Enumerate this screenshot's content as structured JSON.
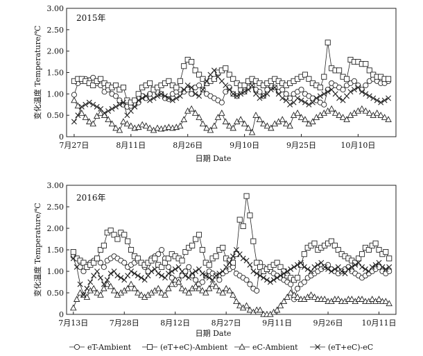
{
  "chart_data": [
    {
      "type": "line",
      "title": "2015年",
      "xlabel": "日期 Date",
      "ylabel": "变化温度 Temperature/℃",
      "ylim": [
        0,
        3
      ],
      "yticks": [
        "0",
        "0.50",
        "1.00",
        "1.50",
        "2.00",
        "2.50",
        "3.00"
      ],
      "xticks": [
        "7月27日",
        "8月11日",
        "8月26日",
        "9月10日",
        "9月25日",
        "10月10日"
      ],
      "x": [
        "07-27",
        "07-28",
        "07-29",
        "07-30",
        "07-31",
        "08-01",
        "08-02",
        "08-03",
        "08-04",
        "08-05",
        "08-06",
        "08-07",
        "08-08",
        "08-09",
        "08-10",
        "08-11",
        "08-12",
        "08-13",
        "08-14",
        "08-15",
        "08-16",
        "08-17",
        "08-18",
        "08-19",
        "08-20",
        "08-21",
        "08-22",
        "08-23",
        "08-24",
        "08-25",
        "08-26",
        "08-27",
        "08-28",
        "08-29",
        "08-30",
        "08-31",
        "09-01",
        "09-02",
        "09-03",
        "09-04",
        "09-05",
        "09-06",
        "09-07",
        "09-08",
        "09-09",
        "09-10",
        "09-11",
        "09-12",
        "09-13",
        "09-14",
        "09-15",
        "09-16",
        "09-17",
        "09-18",
        "09-19",
        "09-20",
        "09-21",
        "09-22",
        "09-23",
        "09-24",
        "09-25",
        "09-26",
        "09-27",
        "09-28",
        "09-29",
        "09-30",
        "10-01",
        "10-02",
        "10-03",
        "10-04",
        "10-05",
        "10-06",
        "10-07",
        "10-08",
        "10-09",
        "10-10",
        "10-11",
        "10-12",
        "10-13",
        "10-14",
        "10-15",
        "10-16",
        "10-17",
        "10-18"
      ],
      "series": [
        {
          "name": "eT-Ambient",
          "marker": "circle",
          "values": [
            0.98,
            1.25,
            1.3,
            1.35,
            1.32,
            1.38,
            1.25,
            1.2,
            1.05,
            1.1,
            1.0,
            0.95,
            0.85,
            0.75,
            0.7,
            0.72,
            0.75,
            0.8,
            0.95,
            0.9,
            1.0,
            1.1,
            1.05,
            1.0,
            0.9,
            0.88,
            1.0,
            1.05,
            1.1,
            1.05,
            1.1,
            1.0,
            1.15,
            1.2,
            1.1,
            1.0,
            0.95,
            0.9,
            0.85,
            0.8,
            1.05,
            1.15,
            1.0,
            0.95,
            1.1,
            1.05,
            1.15,
            1.2,
            1.1,
            1.05,
            0.95,
            1.1,
            1.2,
            1.15,
            1.05,
            1.1,
            1.0,
            0.9,
            1.0,
            1.05,
            1.1,
            1.0,
            0.95,
            0.9,
            0.85,
            0.8,
            0.75,
            1.1,
            1.25,
            1.2,
            1.15,
            1.1,
            1.2,
            1.25,
            1.3,
            1.2,
            1.1,
            1.2,
            1.3,
            1.35,
            1.3,
            1.25,
            1.25,
            1.3
          ]
        },
        {
          "name": "(eT+eC)-Ambient",
          "marker": "square",
          "values": [
            1.3,
            1.35,
            1.35,
            1.3,
            1.25,
            1.2,
            1.3,
            1.35,
            1.25,
            1.2,
            1.15,
            1.2,
            1.1,
            1.15,
            0.85,
            0.8,
            0.85,
            1.0,
            1.15,
            1.2,
            1.25,
            1.1,
            1.15,
            1.2,
            1.25,
            1.3,
            1.2,
            1.15,
            1.3,
            1.65,
            1.8,
            1.75,
            1.55,
            1.45,
            1.35,
            1.25,
            1.3,
            1.35,
            1.5,
            1.55,
            1.6,
            1.45,
            1.35,
            1.25,
            1.2,
            1.2,
            1.3,
            1.35,
            1.3,
            1.25,
            1.2,
            1.25,
            1.3,
            1.35,
            1.3,
            1.25,
            1.2,
            1.25,
            1.3,
            1.35,
            1.4,
            1.45,
            1.35,
            1.25,
            1.2,
            1.15,
            1.4,
            2.2,
            1.6,
            1.55,
            1.55,
            1.4,
            1.35,
            1.8,
            1.75,
            1.75,
            1.7,
            1.7,
            1.55,
            1.45,
            1.4,
            1.4,
            1.35,
            1.35
          ]
        },
        {
          "name": "eC-Ambient",
          "marker": "triangle",
          "values": [
            0.85,
            0.72,
            0.55,
            0.45,
            0.35,
            0.3,
            0.48,
            0.55,
            0.5,
            0.4,
            0.3,
            0.2,
            0.15,
            0.35,
            0.3,
            0.25,
            0.2,
            0.22,
            0.28,
            0.25,
            0.2,
            0.15,
            0.2,
            0.18,
            0.2,
            0.22,
            0.2,
            0.22,
            0.25,
            0.4,
            0.6,
            0.65,
            0.55,
            0.45,
            0.3,
            0.2,
            0.15,
            0.25,
            0.45,
            0.55,
            0.35,
            0.25,
            0.2,
            0.35,
            0.4,
            0.3,
            0.2,
            0.1,
            0.5,
            0.4,
            0.3,
            0.25,
            0.2,
            0.3,
            0.35,
            0.4,
            0.3,
            0.25,
            0.5,
            0.55,
            0.45,
            0.4,
            0.3,
            0.35,
            0.45,
            0.5,
            0.55,
            0.6,
            0.65,
            0.55,
            0.5,
            0.45,
            0.4,
            0.5,
            0.55,
            0.6,
            0.65,
            0.6,
            0.55,
            0.5,
            0.55,
            0.5,
            0.45,
            0.4
          ]
        },
        {
          "name": "(eT+eC)-eC",
          "marker": "cross",
          "values": [
            0.35,
            0.5,
            0.7,
            0.75,
            0.8,
            0.75,
            0.7,
            0.65,
            0.55,
            0.6,
            0.65,
            0.7,
            0.75,
            0.8,
            0.5,
            0.6,
            0.7,
            0.85,
            0.9,
            0.95,
            0.85,
            0.9,
            0.95,
            1.0,
            0.95,
            0.9,
            0.85,
            0.9,
            0.95,
            1.1,
            1.2,
            1.15,
            1.0,
            0.95,
            1.1,
            1.3,
            1.45,
            1.55,
            1.4,
            1.3,
            1.2,
            1.1,
            1.0,
            0.95,
            1.0,
            1.05,
            1.1,
            1.2,
            1.0,
            0.9,
            0.95,
            1.0,
            1.1,
            1.15,
            1.0,
            0.9,
            0.85,
            0.75,
            0.8,
            0.9,
            0.85,
            0.8,
            0.75,
            0.8,
            0.9,
            0.95,
            1.0,
            1.05,
            1.1,
            1.0,
            0.9,
            0.85,
            0.95,
            1.05,
            1.1,
            1.15,
            1.05,
            1.0,
            0.95,
            0.9,
            0.85,
            0.8,
            0.85,
            0.9
          ]
        }
      ]
    },
    {
      "type": "line",
      "title": "2016年",
      "xlabel": "日期 Date",
      "ylabel": "变化温度 Temperature/℃",
      "ylim": [
        0,
        3
      ],
      "yticks": [
        "0",
        "0.50",
        "1.00",
        "1.50",
        "2.00",
        "2.50",
        "3.00"
      ],
      "xticks": [
        "7月13日",
        "7月28日",
        "8月12日",
        "8月27日",
        "9月11日",
        "9月26日",
        "10月11日"
      ],
      "x": [
        "07-13",
        "07-14",
        "07-15",
        "07-16",
        "07-17",
        "07-18",
        "07-19",
        "07-20",
        "07-21",
        "07-22",
        "07-23",
        "07-24",
        "07-25",
        "07-26",
        "07-27",
        "07-28",
        "07-29",
        "07-30",
        "07-31",
        "08-01",
        "08-02",
        "08-03",
        "08-04",
        "08-05",
        "08-06",
        "08-07",
        "08-08",
        "08-09",
        "08-10",
        "08-11",
        "08-12",
        "08-13",
        "08-14",
        "08-15",
        "08-16",
        "08-17",
        "08-18",
        "08-19",
        "08-20",
        "08-21",
        "08-22",
        "08-23",
        "08-24",
        "08-25",
        "08-26",
        "08-27",
        "08-28",
        "08-29",
        "08-30",
        "08-31",
        "09-01",
        "09-02",
        "09-03",
        "09-04",
        "09-05",
        "09-06",
        "09-07",
        "09-08",
        "09-09",
        "09-10",
        "09-11",
        "09-12",
        "09-13",
        "09-14",
        "09-15",
        "09-16",
        "09-17",
        "09-18",
        "09-19",
        "09-20",
        "09-21",
        "09-22",
        "09-23",
        "09-24",
        "09-25",
        "09-26",
        "09-27",
        "09-28",
        "09-29",
        "09-30",
        "10-01",
        "10-02",
        "10-03",
        "10-04",
        "10-05",
        "10-06",
        "10-07",
        "10-08",
        "10-09",
        "10-10",
        "10-11",
        "10-12",
        "10-13",
        "10-14"
      ],
      "series": [
        {
          "name": "eT-Ambient",
          "marker": "circle",
          "values": [
            1.35,
            1.3,
            1.1,
            1.0,
            1.15,
            1.2,
            1.25,
            1.3,
            1.2,
            1.1,
            1.25,
            1.3,
            1.35,
            1.3,
            1.25,
            1.2,
            1.1,
            1.15,
            1.2,
            1.25,
            1.2,
            1.1,
            1.0,
            1.3,
            1.35,
            1.4,
            1.5,
            1.3,
            1.1,
            0.85,
            0.7,
            0.8,
            0.9,
            1.0,
            1.1,
            0.9,
            0.8,
            0.7,
            0.75,
            0.9,
            1.0,
            0.95,
            0.9,
            0.8,
            0.95,
            1.0,
            1.05,
            1.1,
            0.95,
            0.9,
            0.85,
            0.8,
            0.7,
            0.6,
            0.55,
            1.2,
            1.1,
            1.05,
            1.0,
            0.95,
            0.9,
            0.85,
            0.8,
            0.75,
            0.7,
            0.35,
            0.6,
            0.7,
            0.75,
            0.85,
            0.9,
            0.95,
            1.0,
            1.05,
            1.1,
            1.15,
            1.05,
            1.0,
            0.95,
            1.0,
            1.05,
            1.1,
            1.0,
            0.95,
            0.9,
            0.85,
            0.9,
            0.95,
            1.0,
            1.05,
            1.1,
            1.0,
            0.95,
            1.0
          ]
        },
        {
          "name": "(eT+eC)-Ambient",
          "marker": "square",
          "values": [
            1.45,
            1.3,
            1.25,
            1.2,
            1.1,
            1.15,
            1.2,
            1.3,
            1.5,
            1.6,
            1.9,
            1.95,
            1.85,
            1.75,
            1.9,
            1.85,
            1.7,
            1.5,
            1.35,
            1.3,
            1.2,
            1.15,
            1.2,
            1.25,
            1.3,
            1.15,
            1.1,
            1.2,
            1.3,
            1.4,
            1.35,
            1.3,
            1.25,
            1.45,
            1.55,
            1.6,
            1.75,
            1.85,
            1.5,
            1.2,
            1.15,
            1.3,
            1.35,
            1.5,
            1.55,
            1.3,
            1.25,
            1.2,
            1.4,
            2.2,
            2.05,
            2.75,
            2.3,
            1.7,
            1.2,
            1.1,
            1.0,
            1.05,
            1.1,
            1.15,
            1.2,
            1.1,
            1.0,
            0.9,
            0.85,
            0.8,
            0.85,
            1.15,
            1.4,
            1.55,
            1.6,
            1.65,
            1.5,
            1.55,
            1.6,
            1.65,
            1.7,
            1.6,
            1.5,
            1.4,
            1.35,
            1.3,
            1.25,
            1.2,
            1.3,
            1.4,
            1.55,
            1.5,
            1.6,
            1.65,
            1.5,
            1.4,
            1.45,
            1.3
          ]
        },
        {
          "name": "eC-Ambient",
          "marker": "triangle",
          "values": [
            0.15,
            0.35,
            0.5,
            0.45,
            0.4,
            0.55,
            0.6,
            0.5,
            0.45,
            0.6,
            0.7,
            0.65,
            0.55,
            0.45,
            0.5,
            0.55,
            0.6,
            0.7,
            0.6,
            0.5,
            0.45,
            0.4,
            0.45,
            0.5,
            0.55,
            0.6,
            0.5,
            0.45,
            0.6,
            0.7,
            0.8,
            0.75,
            0.6,
            0.55,
            0.5,
            0.6,
            0.65,
            0.6,
            0.55,
            0.5,
            0.6,
            0.7,
            0.65,
            0.55,
            0.5,
            0.6,
            0.55,
            0.45,
            0.3,
            0.2,
            0.15,
            0.2,
            0.1,
            0.05,
            0.1,
            0.1,
            0.0,
            0.0,
            0.0,
            0.05,
            0.1,
            0.2,
            0.3,
            0.4,
            0.5,
            0.45,
            0.4,
            0.35,
            0.35,
            0.4,
            0.45,
            0.4,
            0.35,
            0.35,
            0.35,
            0.3,
            0.3,
            0.35,
            0.35,
            0.3,
            0.3,
            0.35,
            0.35,
            0.3,
            0.35,
            0.35,
            0.3,
            0.3,
            0.35,
            0.3,
            0.35,
            0.3,
            0.3,
            0.25
          ]
        },
        {
          "name": "(eT+eC)-eC",
          "marker": "cross",
          "values": [
            1.3,
            1.1,
            0.7,
            0.45,
            0.6,
            0.75,
            0.9,
            1.0,
            0.85,
            0.7,
            0.8,
            0.95,
            1.0,
            0.9,
            0.85,
            0.8,
            0.9,
            1.0,
            0.95,
            0.9,
            0.85,
            0.8,
            0.9,
            1.0,
            1.05,
            0.95,
            0.9,
            0.85,
            0.95,
            1.0,
            1.05,
            1.1,
            1.0,
            0.9,
            0.85,
            0.95,
            1.0,
            1.05,
            0.95,
            0.9,
            0.85,
            0.8,
            0.9,
            0.95,
            1.0,
            1.1,
            1.2,
            1.35,
            1.5,
            1.4,
            1.3,
            1.25,
            1.15,
            1.0,
            0.95,
            0.9,
            0.85,
            0.8,
            0.75,
            0.8,
            0.85,
            0.9,
            0.95,
            1.0,
            1.05,
            1.1,
            1.15,
            1.2,
            1.1,
            1.05,
            1.0,
            1.1,
            1.15,
            1.2,
            1.1,
            1.05,
            1.0,
            1.05,
            1.1,
            1.0,
            0.95,
            1.05,
            1.1,
            1.15,
            1.2,
            1.1,
            1.05,
            1.0,
            1.1,
            1.15,
            1.2,
            1.1,
            1.05,
            1.1
          ]
        }
      ]
    }
  ],
  "legend": [
    {
      "label": "eT-Ambient",
      "marker": "circle"
    },
    {
      "label": "(eT+eC)-Ambient",
      "marker": "square"
    },
    {
      "label": "eC-Ambient",
      "marker": "triangle"
    },
    {
      "label": "(eT+eC)-eC",
      "marker": "cross"
    }
  ],
  "colors": {
    "ink": "#222222",
    "marker_fill": "#ffffff",
    "background": "#ffffff"
  }
}
